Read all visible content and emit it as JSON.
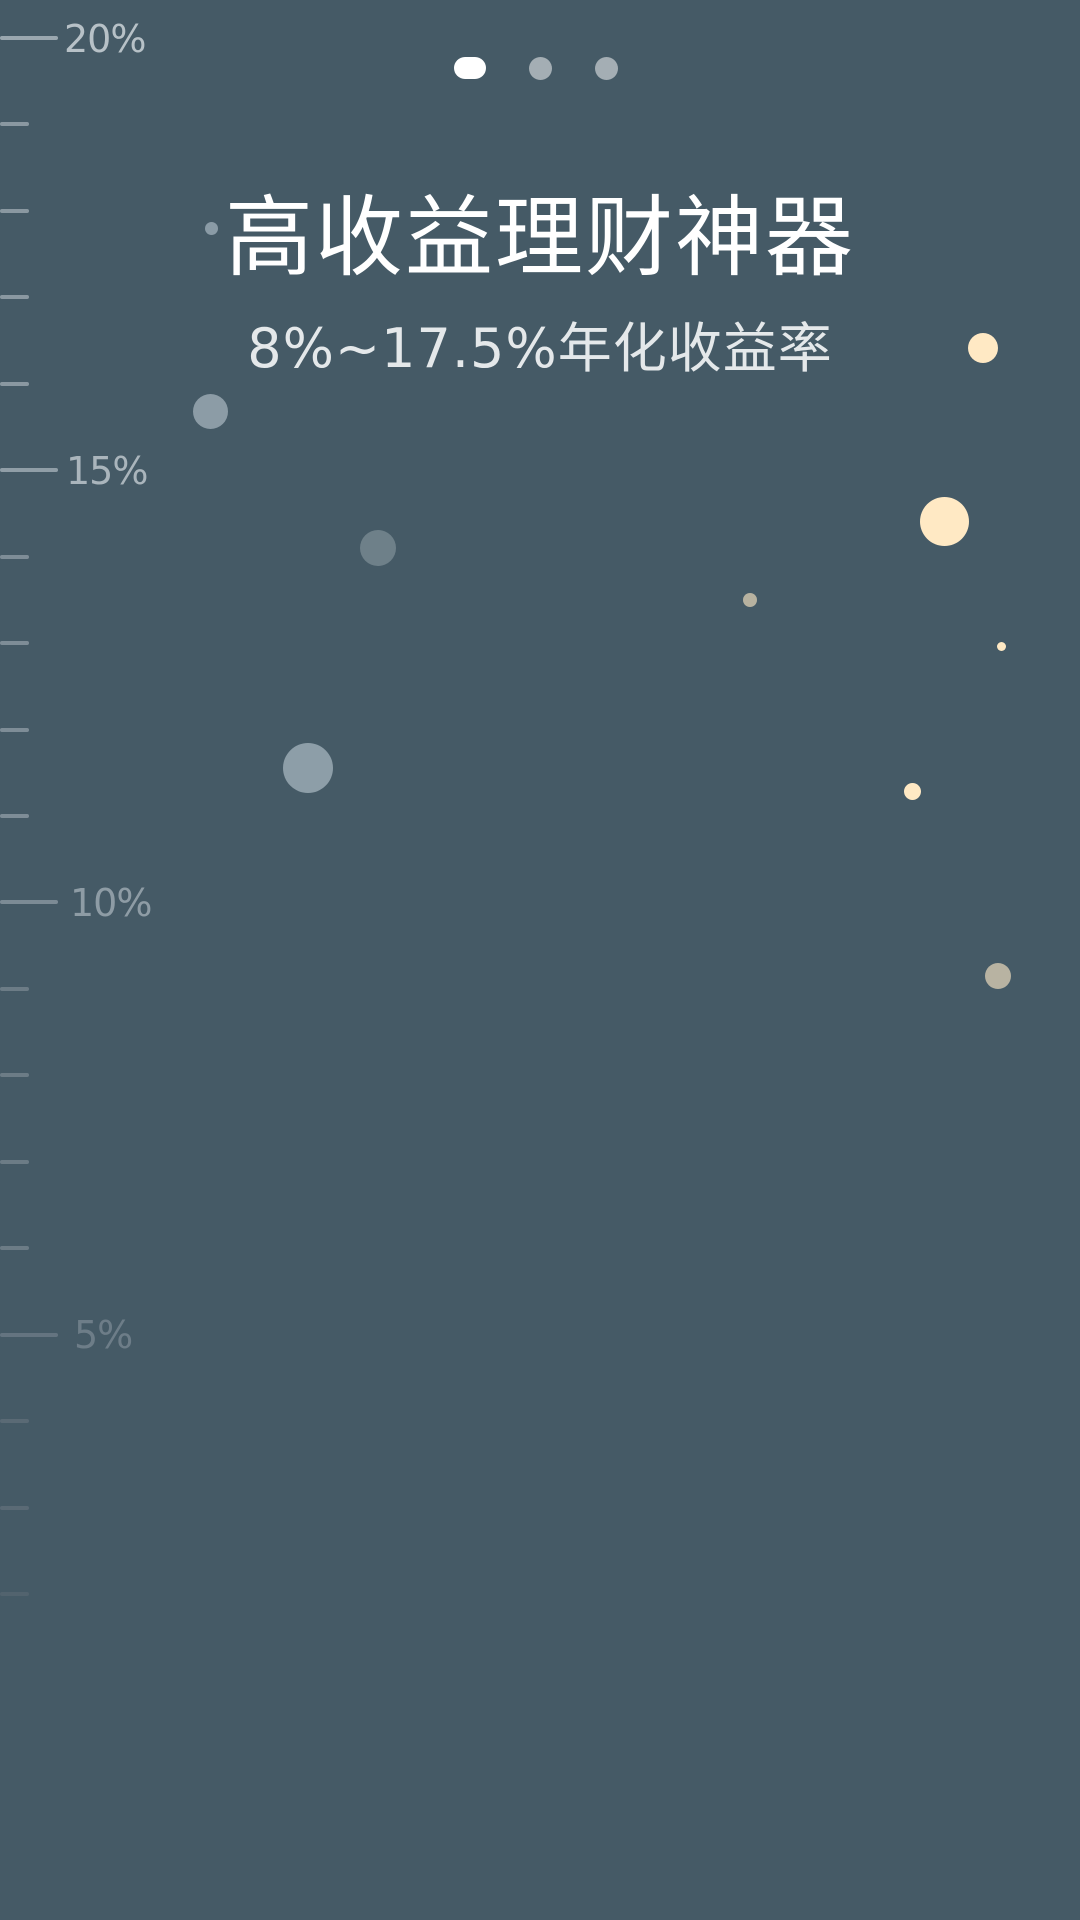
{
  "pager": {
    "page_count": 3,
    "active_index": 0
  },
  "hero": {
    "title": "高收益理财神器",
    "subtitle": "8%~17.5%年化收益率"
  },
  "scale": {
    "labels": [
      "20%",
      "15%",
      "10%",
      "5%"
    ]
  },
  "colors": {
    "background": "#455a66",
    "title": "#ffffff",
    "subtitle": "#e4e8ea",
    "pager_active": "#ffffff",
    "pager_inactive": "#a4aeb4",
    "bubble_cool": "#8a9ba6",
    "bubble_warm": "#ffe9c4",
    "bubble_tan": "#b7b2a0"
  }
}
